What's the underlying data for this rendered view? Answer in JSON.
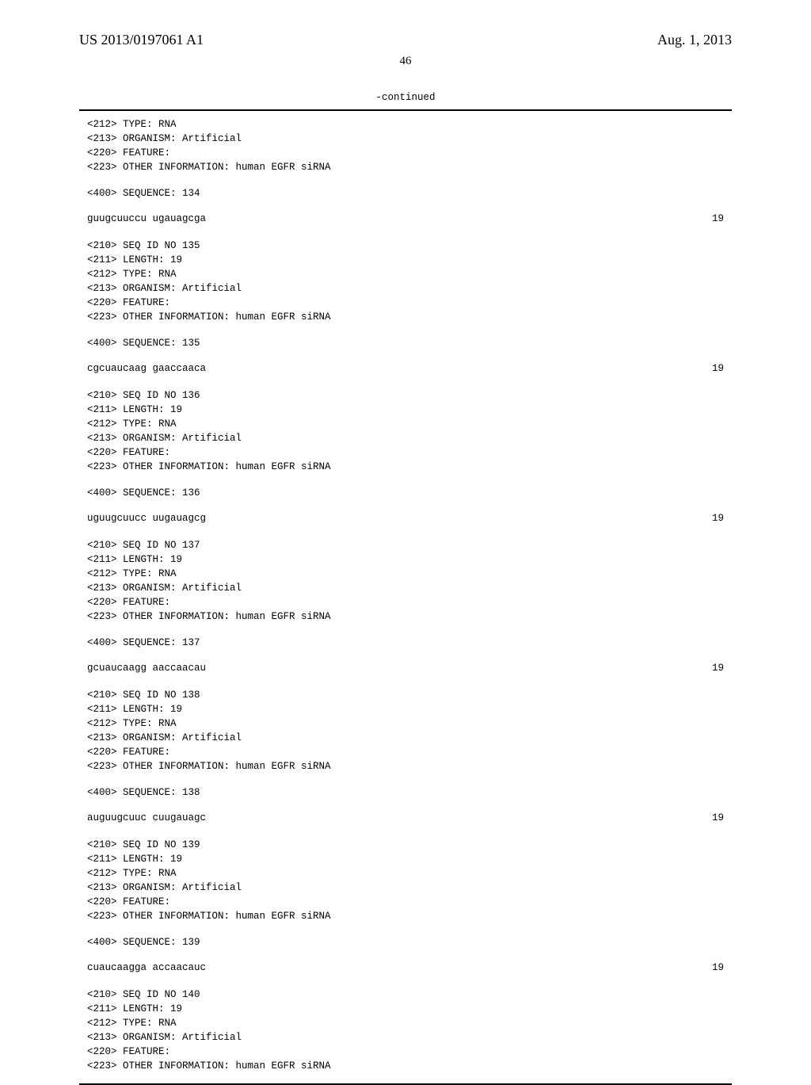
{
  "header": {
    "left": "US 2013/0197061 A1",
    "right": "Aug. 1, 2013"
  },
  "page_number": "46",
  "continued": "-continued",
  "blocks": [
    {
      "meta_top": [
        "<212> TYPE: RNA",
        "<213> ORGANISM: Artificial",
        "<220> FEATURE:",
        "<223> OTHER INFORMATION: human EGFR siRNA"
      ],
      "seq_header": "<400> SEQUENCE: 134",
      "seq_text": "guugcuuccu ugauagcga",
      "seq_num": "19"
    },
    {
      "meta_top": [
        "<210> SEQ ID NO 135",
        "<211> LENGTH: 19",
        "<212> TYPE: RNA",
        "<213> ORGANISM: Artificial",
        "<220> FEATURE:",
        "<223> OTHER INFORMATION: human EGFR siRNA"
      ],
      "seq_header": "<400> SEQUENCE: 135",
      "seq_text": "cgcuaucaag gaaccaaca",
      "seq_num": "19"
    },
    {
      "meta_top": [
        "<210> SEQ ID NO 136",
        "<211> LENGTH: 19",
        "<212> TYPE: RNA",
        "<213> ORGANISM: Artificial",
        "<220> FEATURE:",
        "<223> OTHER INFORMATION: human EGFR siRNA"
      ],
      "seq_header": "<400> SEQUENCE: 136",
      "seq_text": "uguugcuucc uugauagcg",
      "seq_num": "19"
    },
    {
      "meta_top": [
        "<210> SEQ ID NO 137",
        "<211> LENGTH: 19",
        "<212> TYPE: RNA",
        "<213> ORGANISM: Artificial",
        "<220> FEATURE:",
        "<223> OTHER INFORMATION: human EGFR siRNA"
      ],
      "seq_header": "<400> SEQUENCE: 137",
      "seq_text": "gcuaucaagg aaccaacau",
      "seq_num": "19"
    },
    {
      "meta_top": [
        "<210> SEQ ID NO 138",
        "<211> LENGTH: 19",
        "<212> TYPE: RNA",
        "<213> ORGANISM: Artificial",
        "<220> FEATURE:",
        "<223> OTHER INFORMATION: human EGFR siRNA"
      ],
      "seq_header": "<400> SEQUENCE: 138",
      "seq_text": "auguugcuuc cuugauagc",
      "seq_num": "19"
    },
    {
      "meta_top": [
        "<210> SEQ ID NO 139",
        "<211> LENGTH: 19",
        "<212> TYPE: RNA",
        "<213> ORGANISM: Artificial",
        "<220> FEATURE:",
        "<223> OTHER INFORMATION: human EGFR siRNA"
      ],
      "seq_header": "<400> SEQUENCE: 139",
      "seq_text": "cuaucaagga accaacauc",
      "seq_num": "19"
    },
    {
      "meta_top": [
        "<210> SEQ ID NO 140",
        "<211> LENGTH: 19",
        "<212> TYPE: RNA",
        "<213> ORGANISM: Artificial",
        "<220> FEATURE:",
        "<223> OTHER INFORMATION: human EGFR siRNA"
      ],
      "seq_header": "",
      "seq_text": "",
      "seq_num": ""
    }
  ]
}
